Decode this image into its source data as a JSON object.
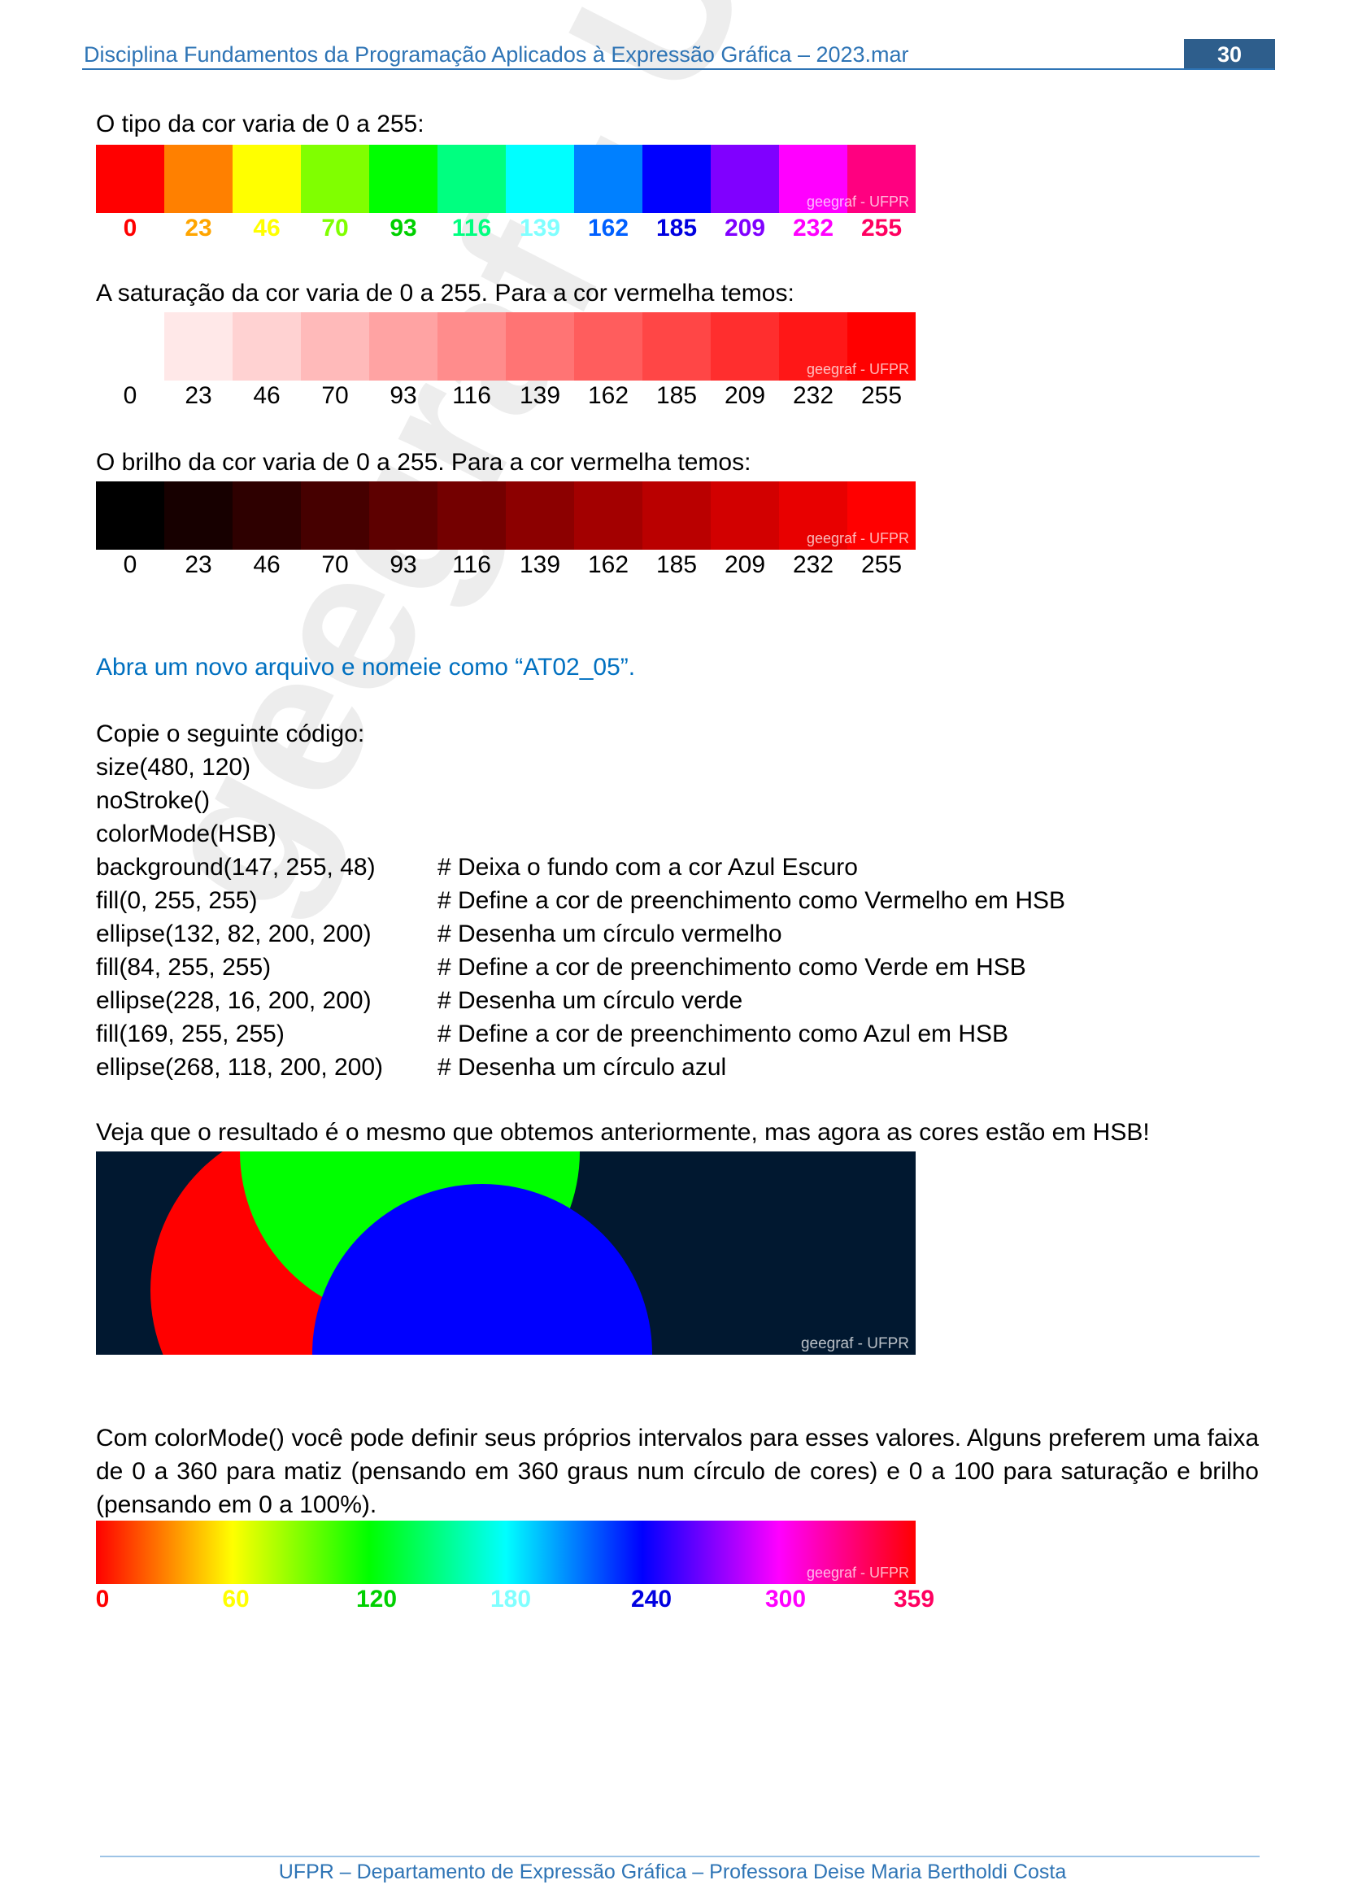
{
  "header": {
    "title": "Disciplina Fundamentos da Programação Aplicados à Expressão Gráfica – 2023.mar",
    "page_number": "30"
  },
  "watermark_small": "geegraf - UFPR",
  "watermark_large": "geegraf - UFPR",
  "hue_section": {
    "text": "O tipo da cor varia de 0 a 255:",
    "swatches": [
      "#ff0000",
      "#ff8000",
      "#ffff00",
      "#80ff00",
      "#00ff00",
      "#00ff80",
      "#00ffff",
      "#0080ff",
      "#0000ff",
      "#8000ff",
      "#ff00ff",
      "#ff0080"
    ],
    "labels": [
      "0",
      "23",
      "46",
      "70",
      "93",
      "116",
      "139",
      "162",
      "185",
      "209",
      "232",
      "255"
    ],
    "label_colors": [
      "#ff0000",
      "#ffa500",
      "#ffff00",
      "#80ff00",
      "#00d000",
      "#00ff80",
      "#80ffff",
      "#0060ff",
      "#0000e0",
      "#8000ff",
      "#ff00ff",
      "#ff0060"
    ]
  },
  "saturation_section": {
    "text": "A saturação da cor varia de 0 a 255. Para a cor vermelha temos:",
    "swatches": [
      "#ffffff",
      "#ffe8e8",
      "#ffd2d2",
      "#ffbaba",
      "#ffa3a3",
      "#ff8c8c",
      "#ff7474",
      "#ff5d5d",
      "#ff4646",
      "#ff2e2e",
      "#ff1717",
      "#ff0000"
    ],
    "labels": [
      "0",
      "23",
      "46",
      "70",
      "93",
      "116",
      "139",
      "162",
      "185",
      "209",
      "232",
      "255"
    ]
  },
  "brightness_section": {
    "text": "O brilho da cor varia de 0 a 255. Para a cor vermelha temos:",
    "swatches": [
      "#000000",
      "#170000",
      "#2e0000",
      "#460000",
      "#5d0000",
      "#740000",
      "#8c0000",
      "#a30000",
      "#ba0000",
      "#d20000",
      "#e80000",
      "#ff0000"
    ],
    "labels": [
      "0",
      "23",
      "46",
      "70",
      "93",
      "116",
      "139",
      "162",
      "185",
      "209",
      "232",
      "255"
    ]
  },
  "instruction": "Abra um novo arquivo e nomeie como “AT02_05”.",
  "copy_intro": "Copie o seguinte código:",
  "code_lines": [
    {
      "code": "size(480, 120)",
      "comment": ""
    },
    {
      "code": "noStroke()",
      "comment": ""
    },
    {
      "code": "colorMode(HSB)",
      "comment": ""
    },
    {
      "code": "background(147, 255, 48)",
      "comment": "# Deixa o fundo com a cor Azul Escuro"
    },
    {
      "code": "fill(0, 255, 255)",
      "comment": "# Define a cor de preenchimento como Vermelho em HSB"
    },
    {
      "code": "ellipse(132, 82, 200, 200)",
      "comment": "# Desenha um círculo vermelho"
    },
    {
      "code": "fill(84, 255, 255)",
      "comment": "# Define a cor de preenchimento como Verde em HSB"
    },
    {
      "code": "ellipse(228, 16, 200, 200)",
      "comment": "# Desenha um círculo verde"
    },
    {
      "code": "fill(169, 255, 255)",
      "comment": "# Define a cor de preenchimento como Azul em HSB"
    },
    {
      "code": "ellipse(268, 118, 200, 200)",
      "comment": "# Desenha um círculo azul"
    }
  ],
  "result_text": "Veja que o resultado é o mesmo que obtemos anteriormente, mas agora as cores estão em HSB!",
  "result_colors": {
    "background": "#011830",
    "red": "#ff0000",
    "green": "#00ff00",
    "blue": "#0000ff"
  },
  "colormode_paragraph": "Com colorMode() você pode definir seus próprios intervalos para esses valores. Alguns preferem uma faixa de 0 a 360 para matiz (pensando em 360 graus num círculo de cores) e 0 a 100 para saturação e brilho (pensando em 0 a 100%).",
  "hue360": {
    "labels": [
      "0",
      "60",
      "120",
      "180",
      "240",
      "300",
      "359"
    ],
    "label_colors": [
      "#ff0000",
      "#ffff00",
      "#00d000",
      "#80ffff",
      "#0000e0",
      "#ff00ff",
      "#ff0060"
    ]
  },
  "footer": "UFPR – Departamento de Expressão Gráfica – Professora Deise Maria Bertholdi Costa"
}
